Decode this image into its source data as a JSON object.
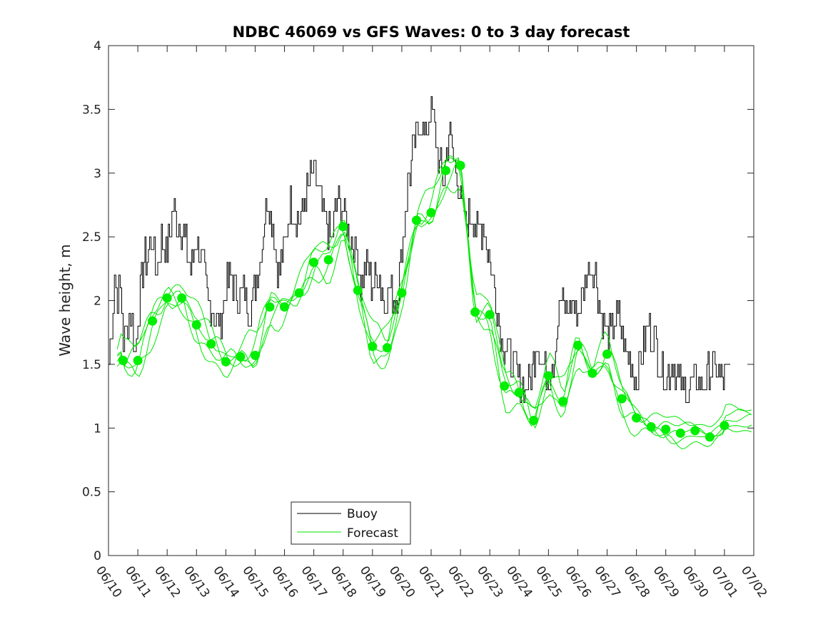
{
  "chart_data": {
    "type": "line",
    "title": "NDBC 46069 vs GFS Waves: 0 to 3 day forecast",
    "xlabel": "",
    "ylabel": "Wave height, m",
    "x_tick_labels": [
      "06/10",
      "06/11",
      "06/12",
      "06/13",
      "06/14",
      "06/15",
      "06/16",
      "06/17",
      "06/18",
      "06/19",
      "06/20",
      "06/21",
      "06/22",
      "06/23",
      "06/24",
      "06/25",
      "06/26",
      "06/27",
      "06/28",
      "06/29",
      "06/30",
      "07/01",
      "07/02"
    ],
    "xlim_days": [
      0,
      22
    ],
    "ylim": [
      0,
      4
    ],
    "y_ticks": [
      0,
      0.5,
      1,
      1.5,
      2,
      2.5,
      3,
      3.5,
      4
    ],
    "y_tick_labels": [
      "0",
      "0.5",
      "1",
      "1.5",
      "2",
      "2.5",
      "3",
      "3.5",
      "4"
    ],
    "legend": {
      "position": "lower-center",
      "entries": [
        "Buoy",
        "Forecast"
      ]
    },
    "colors": {
      "buoy": "#000000",
      "forecast": "#00e600",
      "dots": "#00ee00"
    },
    "series": [
      {
        "name": "Buoy",
        "x_days": [
          0,
          0.1,
          0.2,
          0.3,
          0.4,
          0.5,
          0.6,
          0.7,
          0.8,
          0.9,
          1.0,
          1.2,
          1.4,
          1.5,
          1.6,
          1.8,
          2.0,
          2.2,
          2.4,
          2.6,
          2.8,
          3.0,
          3.2,
          3.4,
          3.6,
          3.8,
          4.0,
          4.2,
          4.4,
          4.6,
          4.8,
          5.0,
          5.2,
          5.4,
          5.6,
          5.8,
          6.0,
          6.2,
          6.4,
          6.6,
          6.8,
          7.0,
          7.2,
          7.4,
          7.6,
          7.8,
          8.0,
          8.2,
          8.4,
          8.5,
          8.6,
          8.8,
          9.0,
          9.2,
          9.4,
          9.6,
          9.8,
          10.0,
          10.2,
          10.4,
          10.6,
          10.8,
          11.0,
          11.2,
          11.4,
          11.6,
          11.8,
          12.0,
          12.2,
          12.4,
          12.6,
          12.8,
          13.0,
          13.2,
          13.4,
          13.6,
          13.8,
          14.0,
          14.2,
          14.4,
          14.6,
          14.8,
          15.0,
          15.2,
          15.4,
          15.6,
          15.8,
          16.0,
          16.2,
          16.4,
          16.6,
          16.8,
          17.0,
          17.2,
          17.4,
          17.6,
          17.8,
          18.0,
          18.2,
          18.4,
          18.6,
          18.8,
          19.0,
          19.2,
          19.4,
          19.6,
          19.8,
          20.0,
          20.2,
          20.4,
          20.6,
          20.8,
          21.0,
          21.2
        ],
        "values": [
          1.5,
          1.8,
          2.2,
          2.0,
          2.1,
          1.7,
          1.8,
          1.9,
          1.8,
          1.6,
          1.9,
          2.3,
          2.4,
          2.5,
          2.2,
          2.5,
          2.4,
          2.7,
          2.6,
          2.5,
          2.2,
          2.5,
          2.3,
          2.0,
          1.9,
          1.8,
          2.1,
          2.2,
          2.0,
          2.1,
          1.9,
          2.1,
          2.4,
          2.8,
          2.6,
          2.2,
          2.4,
          2.8,
          2.6,
          2.7,
          2.9,
          3.0,
          2.8,
          2.6,
          2.5,
          2.8,
          2.7,
          2.5,
          2.4,
          2.3,
          2.1,
          2.3,
          2.1,
          2.2,
          2.0,
          2.1,
          2.0,
          2.4,
          2.9,
          3.2,
          3.4,
          3.3,
          3.5,
          3.2,
          2.9,
          3.3,
          3.1,
          2.8,
          2.6,
          2.7,
          2.5,
          2.6,
          2.3,
          2.0,
          1.7,
          1.6,
          1.5,
          1.4,
          1.3,
          1.4,
          1.7,
          1.5,
          1.4,
          1.6,
          2.0,
          1.9,
          2.0,
          1.9,
          2.1,
          2.3,
          2.2,
          1.9,
          1.7,
          1.8,
          1.9,
          1.6,
          1.5,
          1.4,
          1.6,
          1.8,
          1.7,
          1.5,
          1.4,
          1.5,
          1.4,
          1.3,
          1.3,
          1.4,
          1.3,
          1.4,
          1.5,
          1.4,
          1.4,
          1.5
        ]
      },
      {
        "name": "Forecast",
        "x_days": [
          0.5,
          1.0,
          1.5,
          2.0,
          2.5,
          3.0,
          3.5,
          4.0,
          4.5,
          5.0,
          5.5,
          6.0,
          6.5,
          7.0,
          7.5,
          8.0,
          8.5,
          9.0,
          9.5,
          10.0,
          10.5,
          11.0,
          11.5,
          12.0,
          12.5,
          13.0,
          13.5,
          14.0,
          14.5,
          15.0,
          15.5,
          16.0,
          16.5,
          17.0,
          17.5,
          18.0,
          18.5,
          19.0,
          19.5,
          20.0,
          20.5,
          21.0
        ],
        "values": [
          1.53,
          1.53,
          1.84,
          2.02,
          2.02,
          1.81,
          1.66,
          1.52,
          1.56,
          1.57,
          1.95,
          1.95,
          2.06,
          2.3,
          2.32,
          2.58,
          2.08,
          1.64,
          1.63,
          2.06,
          2.63,
          2.69,
          3.02,
          3.06,
          1.91,
          1.89,
          1.33,
          1.28,
          1.06,
          1.41,
          1.21,
          1.65,
          1.43,
          1.58,
          1.23,
          1.08,
          1.01,
          0.99,
          0.96,
          0.98,
          0.93,
          1.02
        ]
      }
    ]
  }
}
